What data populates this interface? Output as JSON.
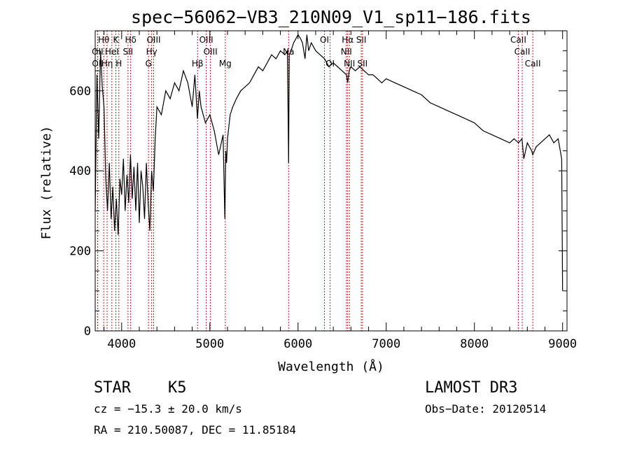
{
  "chart_data": {
    "type": "line",
    "title": "spec−56062−VB3_210N09_V1_sp11−186.fits",
    "xlabel": "Wavelength (Å)",
    "ylabel": "Flux (relative)",
    "xlim": [
      3700,
      9050
    ],
    "ylim": [
      0,
      750
    ],
    "xticks": [
      4000,
      5000,
      6000,
      7000,
      8000,
      9000
    ],
    "yticks": [
      0,
      200,
      400,
      600
    ],
    "series": [
      {
        "name": "flux",
        "x": [
          3700,
          3720,
          3740,
          3760,
          3780,
          3800,
          3820,
          3840,
          3860,
          3880,
          3900,
          3920,
          3940,
          3960,
          3980,
          4000,
          4020,
          4040,
          4060,
          4080,
          4100,
          4120,
          4140,
          4160,
          4180,
          4200,
          4220,
          4240,
          4260,
          4280,
          4300,
          4320,
          4340,
          4360,
          4380,
          4400,
          4450,
          4500,
          4550,
          4600,
          4650,
          4700,
          4750,
          4800,
          4830,
          4860,
          4880,
          4900,
          4950,
          5000,
          5050,
          5100,
          5150,
          5170,
          5180,
          5190,
          5200,
          5230,
          5260,
          5300,
          5350,
          5400,
          5450,
          5500,
          5550,
          5600,
          5650,
          5700,
          5750,
          5800,
          5850,
          5880,
          5893,
          5900,
          5920,
          5950,
          6000,
          6030,
          6050,
          6080,
          6100,
          6120,
          6150,
          6200,
          6250,
          6300,
          6350,
          6400,
          6450,
          6500,
          6550,
          6563,
          6580,
          6600,
          6650,
          6700,
          6750,
          6800,
          6850,
          6900,
          6950,
          7000,
          7100,
          7200,
          7300,
          7400,
          7500,
          7600,
          7700,
          7800,
          7900,
          8000,
          8100,
          8200,
          8300,
          8400,
          8450,
          8500,
          8540,
          8560,
          8600,
          8650,
          8662,
          8700,
          8750,
          8800,
          8850,
          8900,
          8950,
          8990,
          9000
        ],
        "values": [
          300,
          640,
          480,
          700,
          610,
          560,
          380,
          300,
          420,
          280,
          360,
          250,
          330,
          240,
          380,
          340,
          430,
          300,
          390,
          320,
          440,
          330,
          410,
          300,
          420,
          270,
          400,
          360,
          280,
          420,
          320,
          250,
          400,
          350,
          480,
          560,
          540,
          600,
          580,
          620,
          600,
          650,
          620,
          560,
          640,
          530,
          600,
          560,
          520,
          540,
          500,
          440,
          490,
          280,
          450,
          420,
          480,
          540,
          560,
          580,
          600,
          610,
          620,
          640,
          660,
          650,
          670,
          690,
          680,
          700,
          690,
          700,
          420,
          690,
          700,
          720,
          740,
          730,
          720,
          680,
          740,
          700,
          720,
          700,
          690,
          680,
          660,
          670,
          660,
          650,
          640,
          620,
          650,
          660,
          650,
          660,
          650,
          640,
          640,
          630,
          620,
          630,
          620,
          610,
          600,
          590,
          570,
          560,
          550,
          540,
          530,
          520,
          500,
          490,
          480,
          470,
          480,
          470,
          480,
          430,
          470,
          450,
          440,
          460,
          470,
          480,
          490,
          470,
          480,
          430,
          100
        ]
      }
    ],
    "line_marks": [
      {
        "name": "H-theta",
        "label": "Hθ",
        "x": 3797,
        "row": 1
      },
      {
        "name": "OII",
        "label": "OII",
        "x": 3727,
        "row": 2
      },
      {
        "name": "OII-b",
        "label": "OII",
        "x": 3729,
        "row": 3
      },
      {
        "name": "K",
        "label": "K",
        "x": 3934,
        "row": 1
      },
      {
        "name": "H-delta",
        "label": "Hδ",
        "x": 4102,
        "row": 1
      },
      {
        "name": "HeI",
        "label": "HeI",
        "x": 3889,
        "row": 2
      },
      {
        "name": "SII",
        "label": "SII",
        "x": 4072,
        "row": 2
      },
      {
        "name": "H-eta",
        "label": "Hη",
        "x": 3835,
        "row": 3
      },
      {
        "name": "H",
        "label": "H",
        "x": 3968,
        "row": 3
      },
      {
        "name": "OIII",
        "label": "OIII",
        "x": 4363,
        "row": 1
      },
      {
        "name": "H-gamma",
        "label": "Hγ",
        "x": 4340,
        "row": 2
      },
      {
        "name": "G",
        "label": "G",
        "x": 4305,
        "row": 3
      },
      {
        "name": "OIII-4959",
        "label": "OIII",
        "x": 4959,
        "row": 1
      },
      {
        "name": "OIII-5007",
        "label": "OIII",
        "x": 5007,
        "row": 2
      },
      {
        "name": "H-beta",
        "label": "Hβ",
        "x": 4861,
        "row": 3
      },
      {
        "name": "Mg",
        "label": "Mg",
        "x": 5175,
        "row": 3
      },
      {
        "name": "Na",
        "label": "Na",
        "x": 5893,
        "row": 2
      },
      {
        "name": "OI",
        "label": "OI",
        "x": 6300,
        "row": 1
      },
      {
        "name": "OI-b",
        "label": "OI",
        "x": 6364,
        "row": 3
      },
      {
        "name": "H-alpha",
        "label": "Hα",
        "x": 6563,
        "row": 1
      },
      {
        "name": "SII-6717",
        "label": "SII",
        "x": 6717,
        "row": 1
      },
      {
        "name": "NII",
        "label": "NII",
        "x": 6548,
        "row": 2
      },
      {
        "name": "NII-b",
        "label": "NII",
        "x": 6583,
        "row": 3
      },
      {
        "name": "SII-6731",
        "label": "SII",
        "x": 6731,
        "row": 3
      },
      {
        "name": "CaII-8498",
        "label": "CaII",
        "x": 8498,
        "row": 1
      },
      {
        "name": "CaII-8542",
        "label": "CaII",
        "x": 8542,
        "row": 2
      },
      {
        "name": "CaII-8662",
        "label": "CaII",
        "x": 8662,
        "row": 3
      }
    ]
  },
  "info": {
    "class_label": "STAR",
    "subclass": "K5",
    "survey": "LAMOST DR3",
    "cz": "cz = −15.3 ± 20.0 km/s",
    "obs_date": "Obs−Date: 20120514",
    "coords": "RA = 210.50087, DEC =  11.85184"
  }
}
